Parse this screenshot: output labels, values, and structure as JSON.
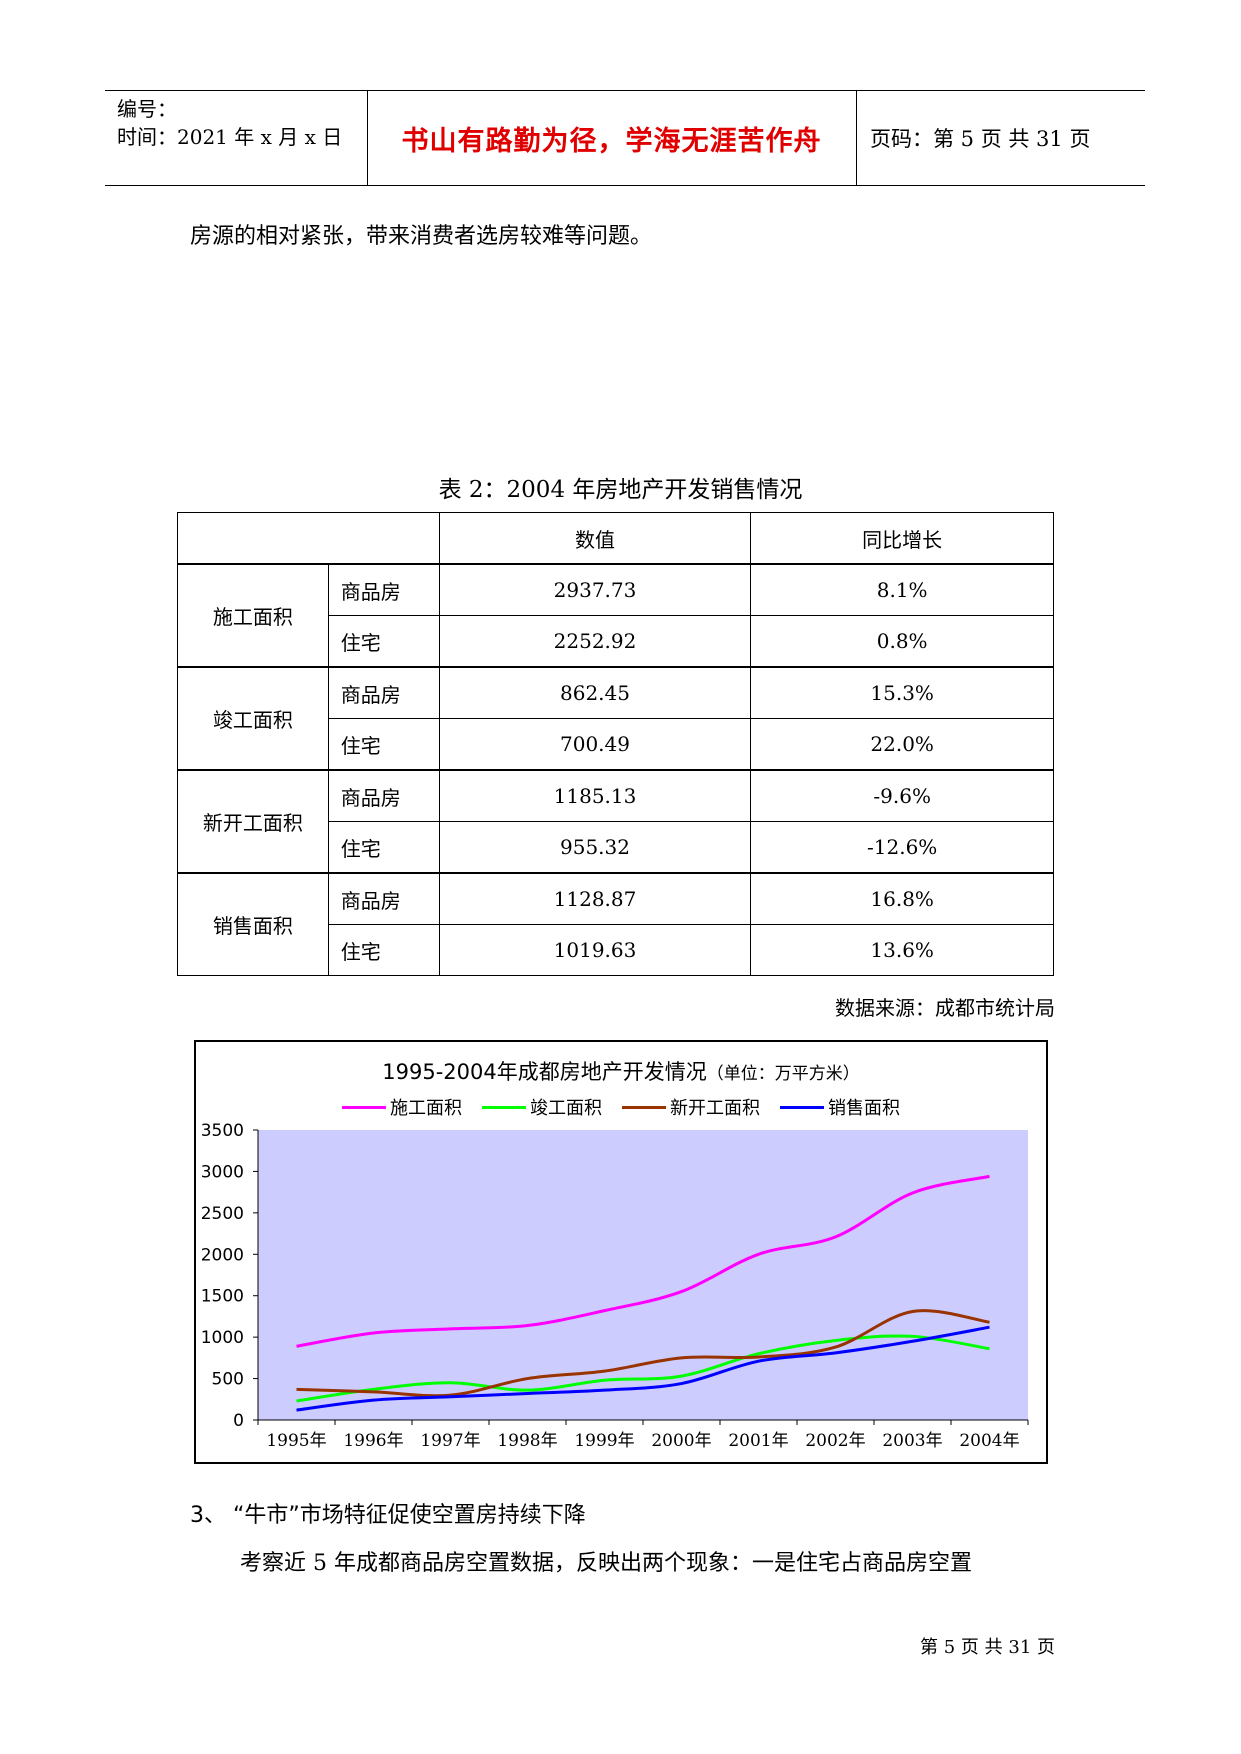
{
  "header": {
    "number_label": "编号：",
    "time_label": "时间：2021 年 x 月 x 日",
    "motto": "书山有路勤为径，学海无涯苦作舟",
    "page_info": "页码：第 5 页  共 31 页"
  },
  "intro_text": "房源的相对紧张，带来消费者选房较难等问题。",
  "table": {
    "caption": "表 2：2004 年房地产开发销售情况",
    "headers": [
      "数值",
      "同比增长"
    ],
    "groups": [
      {
        "name": "施工面积",
        "rows": [
          {
            "type": "商品房",
            "value": "2937.73",
            "growth": "8.1%"
          },
          {
            "type": "住宅",
            "value": "2252.92",
            "growth": "0.8%"
          }
        ]
      },
      {
        "name": "竣工面积",
        "rows": [
          {
            "type": "商品房",
            "value": "862.45",
            "growth": "15.3%"
          },
          {
            "type": "住宅",
            "value": "700.49",
            "growth": "22.0%"
          }
        ]
      },
      {
        "name": "新开工面积",
        "rows": [
          {
            "type": "商品房",
            "value": "1185.13",
            "growth": "-9.6%"
          },
          {
            "type": "住宅",
            "value": "955.32",
            "growth": "-12.6%"
          }
        ]
      },
      {
        "name": "销售面积",
        "rows": [
          {
            "type": "商品房",
            "value": "1128.87",
            "growth": "16.8%"
          },
          {
            "type": "住宅",
            "value": "1019.63",
            "growth": "13.6%"
          }
        ]
      }
    ],
    "source": "数据来源：成都市统计局"
  },
  "chart_data": {
    "type": "line",
    "title": "1995-2004年成都房地产开发情况",
    "unit": "（单位：万平方米）",
    "x": [
      "1995年",
      "1996年",
      "1997年",
      "1998年",
      "1999年",
      "2000年",
      "2001年",
      "2002年",
      "2003年",
      "2004年"
    ],
    "ylim": [
      0,
      3500
    ],
    "yticks": [
      0,
      500,
      1000,
      1500,
      2000,
      2500,
      3000,
      3500
    ],
    "grid": false,
    "legend_position": "top",
    "plot_background": "#ccccff",
    "series": [
      {
        "name": "施工面积",
        "color": "#ff00ff",
        "values": [
          890,
          1050,
          1100,
          1140,
          1320,
          1550,
          2000,
          2210,
          2740,
          2940
        ]
      },
      {
        "name": "竣工面积",
        "color": "#00ff00",
        "values": [
          230,
          370,
          450,
          360,
          480,
          530,
          800,
          960,
          1010,
          860
        ]
      },
      {
        "name": "新开工面积",
        "color": "#993300",
        "values": [
          370,
          340,
          300,
          500,
          590,
          750,
          760,
          880,
          1310,
          1180
        ]
      },
      {
        "name": "销售面积",
        "color": "#0000ff",
        "values": [
          120,
          240,
          280,
          320,
          360,
          440,
          710,
          810,
          950,
          1120
        ]
      }
    ]
  },
  "section3_heading": "3、 “牛市”市场特征促使空置房持续下降",
  "section3_text": "考察近 5 年成都商品房空置数据，反映出两个现象：一是住宅占商品房空置",
  "footer": "第 5 页 共 31 页"
}
